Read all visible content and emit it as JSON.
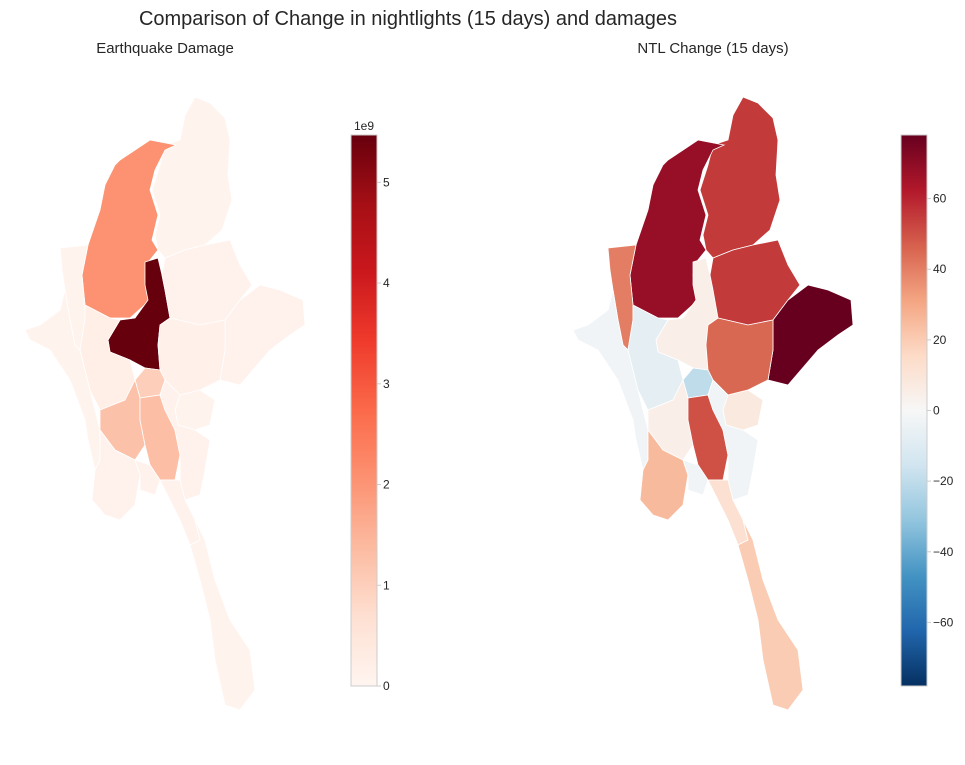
{
  "chart_data": [
    {
      "type": "choropleth",
      "suptitle": "Comparison of Change in nightlights (15 days) and damages",
      "title": "Earthquake Damage",
      "colormap": "Reds",
      "colorbar": {
        "range": [
          0,
          5.47
        ],
        "ticks": [
          0,
          1,
          2,
          3,
          4,
          5
        ],
        "tick_labels": [
          "0",
          "1",
          "2",
          "3",
          "4",
          "5"
        ],
        "offset_label": "1e9"
      },
      "regions": {
        "Kachin": 0.05,
        "Sagaing": 2.05,
        "Mandalay": 5.47,
        "Shan North": 0.1,
        "Shan East": 0.1,
        "Shan South": 0.15,
        "Chin": 0.05,
        "Rakhine": 0.05,
        "Magway": 0.2,
        "Naypyitaw": 1.0,
        "Bago West": 1.25,
        "Bago East": 1.3,
        "Kayah": 0.05,
        "Kayin": 0.1,
        "Ayeyarwady": 0.1,
        "Yangon": 0.1,
        "Mon": 0.1,
        "Tanintharyi": 0.05
      }
    },
    {
      "type": "choropleth",
      "title": "NTL Change (15 days)",
      "colormap": "RdBu_r",
      "colorbar": {
        "range": [
          -78,
          78
        ],
        "ticks": [
          -60,
          -40,
          -20,
          0,
          20,
          40,
          60
        ],
        "tick_labels": [
          "−60",
          "−40",
          "−20",
          "0",
          "20",
          "40",
          "60"
        ]
      },
      "regions": {
        "Kachin": 55,
        "Sagaing": 68,
        "Mandalay": 5,
        "Shan North": 55,
        "Shan East": 78,
        "Shan South": 45,
        "Chin": 40,
        "Rakhine": -3,
        "Magway": -8,
        "Naypyitaw": -20,
        "Bago West": 5,
        "Bago East": 50,
        "Kayah": 8,
        "Kayin": -3,
        "Ayeyarwady": 25,
        "Yangon": -3,
        "Mon": 12,
        "Tanintharyi": 20
      }
    }
  ]
}
